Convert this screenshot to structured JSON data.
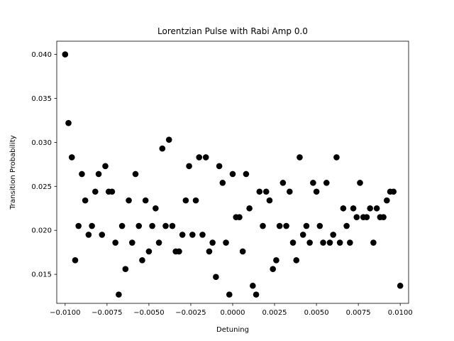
{
  "chart_data": {
    "type": "scatter",
    "title": "Lorentzian Pulse with Rabi Amp 0.0",
    "xlabel": "Detuning",
    "ylabel": "Transition Probability",
    "xlim": [
      -0.0105,
      0.0105
    ],
    "ylim": [
      0.0117,
      0.0415
    ],
    "xticks": [
      -0.01,
      -0.0075,
      -0.005,
      -0.0025,
      0.0,
      0.0025,
      0.005,
      0.0075,
      0.01
    ],
    "xtick_labels": [
      "−0.0100",
      "−0.0075",
      "−0.0050",
      "−0.0025",
      "0.0000",
      "0.0025",
      "0.0050",
      "0.0075",
      "0.0100"
    ],
    "yticks": [
      0.015,
      0.02,
      0.025,
      0.03,
      0.035,
      0.04
    ],
    "ytick_labels": [
      "0.015",
      "0.020",
      "0.025",
      "0.030",
      "0.035",
      "0.040"
    ],
    "grid": false,
    "marker_color": "#000000",
    "points": [
      [
        -0.01,
        0.04
      ],
      [
        -0.0098,
        0.0322
      ],
      [
        -0.0096,
        0.0283
      ],
      [
        -0.0094,
        0.0166
      ],
      [
        -0.0092,
        0.0205
      ],
      [
        -0.009,
        0.0264
      ],
      [
        -0.0088,
        0.0234
      ],
      [
        -0.0086,
        0.0195
      ],
      [
        -0.0084,
        0.0205
      ],
      [
        -0.0082,
        0.0244
      ],
      [
        -0.008,
        0.0264
      ],
      [
        -0.0078,
        0.0195
      ],
      [
        -0.0076,
        0.0273
      ],
      [
        -0.0074,
        0.0244
      ],
      [
        -0.0072,
        0.0244
      ],
      [
        -0.007,
        0.0186
      ],
      [
        -0.0068,
        0.0127
      ],
      [
        -0.0066,
        0.0205
      ],
      [
        -0.0064,
        0.0156
      ],
      [
        -0.0062,
        0.0234
      ],
      [
        -0.006,
        0.0186
      ],
      [
        -0.0058,
        0.0264
      ],
      [
        -0.0056,
        0.0205
      ],
      [
        -0.0054,
        0.0166
      ],
      [
        -0.0052,
        0.0234
      ],
      [
        -0.005,
        0.0176
      ],
      [
        -0.0048,
        0.0205
      ],
      [
        -0.0046,
        0.0225
      ],
      [
        -0.0044,
        0.0186
      ],
      [
        -0.0042,
        0.0293
      ],
      [
        -0.004,
        0.0205
      ],
      [
        -0.0038,
        0.0303
      ],
      [
        -0.0036,
        0.0205
      ],
      [
        -0.0034,
        0.0176
      ],
      [
        -0.0032,
        0.0176
      ],
      [
        -0.003,
        0.0195
      ],
      [
        -0.0028,
        0.0234
      ],
      [
        -0.0026,
        0.0273
      ],
      [
        -0.0024,
        0.0195
      ],
      [
        -0.0022,
        0.0234
      ],
      [
        -0.002,
        0.0283
      ],
      [
        -0.0018,
        0.0195
      ],
      [
        -0.0016,
        0.0283
      ],
      [
        -0.0014,
        0.0176
      ],
      [
        -0.0012,
        0.0186
      ],
      [
        -0.001,
        0.0147
      ],
      [
        -0.0008,
        0.0273
      ],
      [
        -0.0006,
        0.0254
      ],
      [
        -0.0004,
        0.0186
      ],
      [
        -0.0002,
        0.0127
      ],
      [
        0.0,
        0.0264
      ],
      [
        0.0002,
        0.0215
      ],
      [
        0.0004,
        0.0215
      ],
      [
        0.0006,
        0.0176
      ],
      [
        0.0008,
        0.0264
      ],
      [
        0.001,
        0.0225
      ],
      [
        0.0012,
        0.0137
      ],
      [
        0.0014,
        0.0127
      ],
      [
        0.0016,
        0.0244
      ],
      [
        0.0018,
        0.0205
      ],
      [
        0.002,
        0.0244
      ],
      [
        0.0022,
        0.0234
      ],
      [
        0.0024,
        0.0156
      ],
      [
        0.0026,
        0.0166
      ],
      [
        0.0028,
        0.0205
      ],
      [
        0.003,
        0.0254
      ],
      [
        0.0032,
        0.0205
      ],
      [
        0.0034,
        0.0244
      ],
      [
        0.0036,
        0.0186
      ],
      [
        0.0038,
        0.0166
      ],
      [
        0.004,
        0.0283
      ],
      [
        0.0042,
        0.0195
      ],
      [
        0.0044,
        0.0205
      ],
      [
        0.0046,
        0.0186
      ],
      [
        0.0048,
        0.0254
      ],
      [
        0.005,
        0.0244
      ],
      [
        0.0052,
        0.0205
      ],
      [
        0.0054,
        0.0186
      ],
      [
        0.0056,
        0.0254
      ],
      [
        0.0058,
        0.0186
      ],
      [
        0.006,
        0.0195
      ],
      [
        0.0062,
        0.0283
      ],
      [
        0.0064,
        0.0186
      ],
      [
        0.0066,
        0.0225
      ],
      [
        0.0068,
        0.0205
      ],
      [
        0.007,
        0.0186
      ],
      [
        0.0072,
        0.0225
      ],
      [
        0.0074,
        0.0215
      ],
      [
        0.0076,
        0.0254
      ],
      [
        0.0078,
        0.0215
      ],
      [
        0.008,
        0.0215
      ],
      [
        0.0082,
        0.0225
      ],
      [
        0.0084,
        0.0186
      ],
      [
        0.0086,
        0.0225
      ],
      [
        0.0088,
        0.0215
      ],
      [
        0.009,
        0.0215
      ],
      [
        0.0092,
        0.0234
      ],
      [
        0.0094,
        0.0244
      ],
      [
        0.0096,
        0.0244
      ],
      [
        0.01,
        0.0137
      ]
    ]
  }
}
